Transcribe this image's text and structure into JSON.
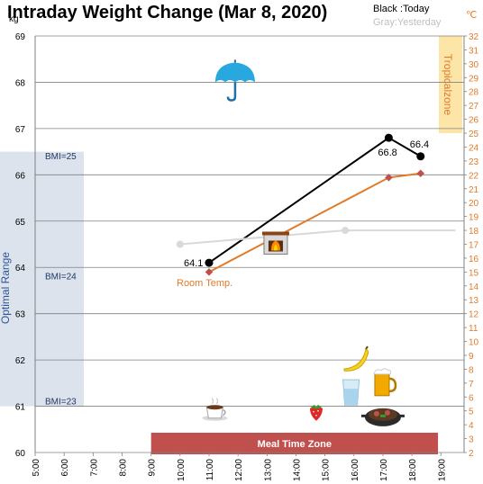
{
  "chart_data": {
    "type": "line",
    "title": "Intraday Weight Change (Mar 8, 2020)",
    "legend": {
      "today": "Black :Today",
      "yesterday": "Gray:Yesterday"
    },
    "left_unit": "kg",
    "right_unit": "℃",
    "x_ticks": [
      "5:00",
      "6:00",
      "7:00",
      "8:00",
      "9:00",
      "10:00",
      "11:00",
      "12:00",
      "13:00",
      "14:00",
      "15:00",
      "16:00",
      "17:00",
      "18:00",
      "19:00"
    ],
    "y_left": {
      "min": 60,
      "max": 69,
      "ticks": [
        60,
        61,
        62,
        63,
        64,
        65,
        66,
        67,
        68,
        69
      ]
    },
    "y_right": {
      "min": 2,
      "max": 32,
      "ticks": [
        2,
        3,
        4,
        5,
        6,
        7,
        8,
        9,
        10,
        11,
        12,
        13,
        14,
        15,
        16,
        17,
        18,
        19,
        20,
        21,
        22,
        23,
        24,
        25,
        26,
        27,
        28,
        29,
        30,
        31,
        32
      ]
    },
    "series": [
      {
        "key": "today",
        "axis": "left",
        "color": "#000000",
        "x": [
          11.0,
          17.2,
          18.3
        ],
        "y": [
          64.1,
          66.8,
          66.4
        ],
        "labels": [
          "64.1",
          "66.8",
          "66.4"
        ]
      },
      {
        "key": "yesterday",
        "axis": "left",
        "color": "#d9d9d9",
        "x": [
          10.0,
          15.7,
          19.5
        ],
        "y": [
          64.5,
          64.8,
          64.8
        ]
      },
      {
        "key": "room_temp",
        "axis": "right",
        "color": "#e07b2a",
        "x": [
          11.0,
          17.2,
          18.3
        ],
        "y": [
          15.0,
          21.8,
          22.1
        ]
      }
    ],
    "bands": {
      "optimal_range": {
        "label": "Optimal Range",
        "y_from": 61.0,
        "y_to": 66.5,
        "color": "#dce3ec"
      },
      "tropical": {
        "label": "Tropicalzone",
        "y_from": 25,
        "y_to": 32,
        "color": "#fde5a8"
      },
      "meal_time": {
        "label": "Meal Time Zone",
        "x_from": 9.0,
        "x_to": 18.9,
        "color": "#c0504d"
      }
    },
    "bmi_lines": [
      {
        "label": "BMI=25",
        "y": 66.4
      },
      {
        "label": "BMI=24",
        "y": 63.8
      },
      {
        "label": "BMI=23",
        "y": 61.1
      }
    ],
    "annotations": {
      "room_temp": "Room Temp."
    },
    "icons": [
      {
        "name": "umbrella-icon",
        "x": 11.9,
        "y": 68.0
      },
      {
        "name": "fireplace-icon",
        "x": 13.3,
        "y": 64.5
      },
      {
        "name": "coffee-icon",
        "x": 11.2,
        "y": 60.9
      },
      {
        "name": "strawberry-icon",
        "x": 14.7,
        "y": 60.9
      },
      {
        "name": "water-glass-icon",
        "x": 15.9,
        "y": 61.3
      },
      {
        "name": "banana-icon",
        "x": 16.1,
        "y": 62.0
      },
      {
        "name": "beer-icon",
        "x": 17.0,
        "y": 61.5
      },
      {
        "name": "hotpot-icon",
        "x": 17.0,
        "y": 60.8
      }
    ]
  }
}
